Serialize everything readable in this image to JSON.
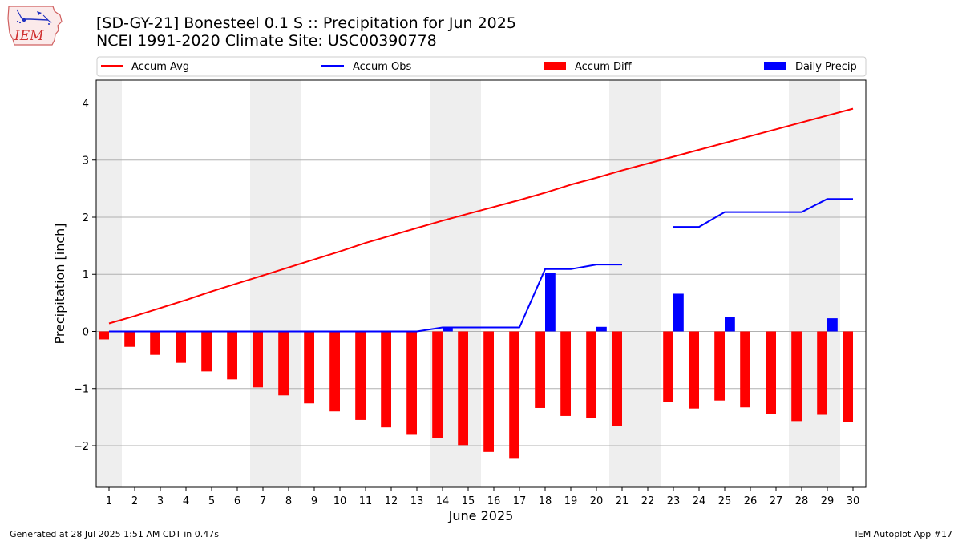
{
  "header": {
    "title_line1": "[SD-GY-21] Bonesteel 0.1 S :: Precipitation for Jun 2025",
    "title_line2": "NCEI 1991-2020 Climate Site: USC00390778",
    "logo_text": "IEM"
  },
  "footer": {
    "generated": "Generated at 28 Jul 2025 1:51 AM CDT in 0.47s",
    "app": "IEM Autoplot App #17"
  },
  "chart_data": {
    "type": "bar",
    "xlabel": "June 2025",
    "ylabel": "Precipitation [inch]",
    "xlim": [
      0.5,
      30.5
    ],
    "ylim": [
      -2.73,
      4.4
    ],
    "yticks": [
      -2,
      -1,
      0,
      1,
      2,
      3,
      4
    ],
    "ytick_labels": [
      "−2",
      "−1",
      "0",
      "1",
      "2",
      "3",
      "4"
    ],
    "grid": true,
    "legend_position": "top",
    "weekend_shading_days": [
      1,
      7,
      8,
      14,
      15,
      21,
      22,
      28,
      29
    ],
    "x": [
      1,
      2,
      3,
      4,
      5,
      6,
      7,
      8,
      9,
      10,
      11,
      12,
      13,
      14,
      15,
      16,
      17,
      18,
      19,
      20,
      21,
      22,
      23,
      24,
      25,
      26,
      27,
      28,
      29,
      30
    ],
    "series": [
      {
        "name": "Accum Avg",
        "kind": "line",
        "color": "#ff0000",
        "values": [
          0.14,
          0.27,
          0.41,
          0.55,
          0.7,
          0.84,
          0.98,
          1.12,
          1.26,
          1.4,
          1.55,
          1.68,
          1.81,
          1.94,
          2.06,
          2.18,
          2.3,
          2.43,
          2.57,
          2.69,
          2.82,
          2.94,
          3.06,
          3.18,
          3.3,
          3.42,
          3.54,
          3.66,
          3.78,
          3.9
        ]
      },
      {
        "name": "Accum Obs",
        "kind": "line",
        "color": "#0000ff",
        "values": [
          0,
          0,
          0,
          0,
          0,
          0,
          0,
          0,
          0,
          0,
          0,
          0,
          0,
          0.07,
          0.07,
          0.07,
          0.07,
          1.09,
          1.09,
          1.17,
          1.17,
          null,
          1.83,
          1.83,
          2.09,
          2.09,
          2.09,
          2.09,
          2.32,
          2.32
        ]
      },
      {
        "name": "Accum Diff",
        "kind": "bar",
        "color": "#ff0000",
        "values": [
          -0.14,
          -0.27,
          -0.41,
          -0.55,
          -0.7,
          -0.84,
          -0.98,
          -1.12,
          -1.26,
          -1.4,
          -1.55,
          -1.68,
          -1.81,
          -1.87,
          -1.99,
          -2.11,
          -2.23,
          -1.34,
          -1.48,
          -1.52,
          -1.65,
          null,
          -1.23,
          -1.35,
          -1.21,
          -1.33,
          -1.45,
          -1.57,
          -1.46,
          -1.58
        ]
      },
      {
        "name": "Daily Precip",
        "kind": "bar",
        "color": "#0000ff",
        "values": [
          0,
          0,
          0,
          0,
          0,
          0,
          0,
          0,
          0,
          0,
          0,
          0,
          0,
          0.07,
          0,
          0,
          0,
          1.02,
          0,
          0.08,
          0,
          null,
          0.66,
          0,
          0.25,
          0,
          0,
          0,
          0.23,
          0
        ]
      }
    ]
  }
}
